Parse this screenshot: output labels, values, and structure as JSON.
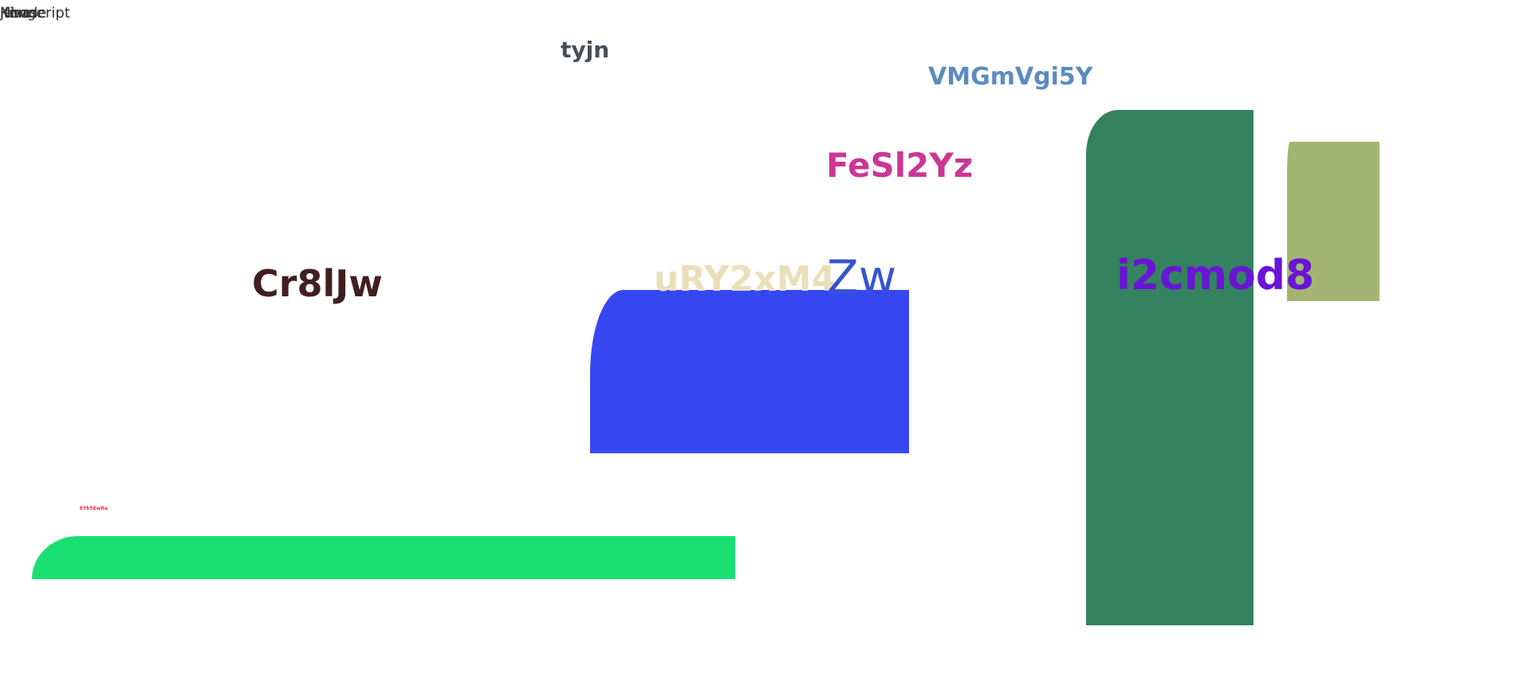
{
  "corner_fragments": [
    "javascript",
    "jfonge",
    "Nhode",
    "Kine"
  ],
  "labels": {
    "tyjn": "tyjn",
    "vmg": "VMGmVgi5Y",
    "fesl": "FeSl2Yz",
    "cr8": "Cr8lJw",
    "ury": "uRY2xM4",
    "zw": "Zw",
    "i2c": "i2cmod8",
    "tiny": "EYk5EwRa"
  },
  "colors": {
    "blue_block": "#3647f2",
    "dark_green_block": "#348260",
    "olive_block": "#a4b573",
    "bright_green_bar": "#19df72",
    "tyjn": "#445059",
    "vmg": "#5b8cbf",
    "fesl": "#cc3694",
    "cr8": "#40201f",
    "ury": "#eadfba",
    "zw": "#3654d1",
    "i2c": "#6a14d6",
    "tiny": "#ff2b3a"
  }
}
